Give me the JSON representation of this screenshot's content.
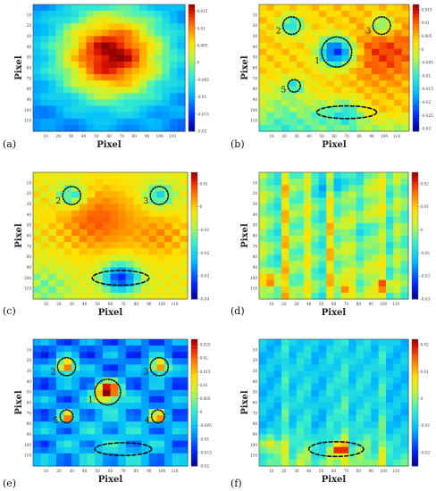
{
  "figure": {
    "panels": [
      {
        "label": "(a)",
        "type": "heatmap",
        "x_axis_title": "Pixel",
        "y_axis_title": "Pixel",
        "x_ticks": [
          "10",
          "20",
          "30",
          "40",
          "50",
          "60",
          "70",
          "80",
          "90",
          "100",
          "110"
        ],
        "y_ticks": [
          "10",
          "20",
          "30",
          "40",
          "50",
          "60",
          "70",
          "80",
          "90",
          "100",
          "110"
        ],
        "colorbar_ticks": [
          "0.015",
          "0.01",
          "0.005",
          "0",
          "-0.005",
          "-0.01",
          "-0.015",
          "-0.02"
        ],
        "colorbar_range": [
          -0.02,
          0.017
        ],
        "pattern": "central-peak",
        "markers": []
      },
      {
        "label": "(b)",
        "type": "heatmap",
        "x_axis_title": "Pixel",
        "y_axis_title": "Pixel",
        "x_ticks": [
          "10",
          "20",
          "30",
          "40",
          "50",
          "60",
          "70",
          "80",
          "90",
          "100",
          "110"
        ],
        "y_ticks": [
          "10",
          "20",
          "30",
          "40",
          "50",
          "60",
          "70",
          "80",
          "90",
          "100",
          "110"
        ],
        "colorbar_ticks": [
          "0.015",
          "0.01",
          "0.005",
          "0",
          "-0.005",
          "-0.01",
          "-0.015",
          "-0.02",
          "-0.025",
          "-0.03"
        ],
        "colorbar_range": [
          -0.031,
          0.017
        ],
        "pattern": "warm-with-dips",
        "markers": [
          {
            "label": "1",
            "x": 62,
            "y": 45,
            "r": 12,
            "style": "dotted",
            "kind": "circle"
          },
          {
            "label": "2",
            "x": 26,
            "y": 20,
            "r": 7,
            "style": "dotted",
            "kind": "circle"
          },
          {
            "label": "3",
            "x": 98,
            "y": 20,
            "r": 7,
            "style": "dotted",
            "kind": "circle"
          },
          {
            "label": "5",
            "x": 28,
            "y": 77,
            "r": 5,
            "style": "dotted",
            "kind": "circle"
          },
          {
            "label": "",
            "x": 70,
            "y": 102,
            "r": 24,
            "ry": 6,
            "style": "dashed",
            "kind": "ellipse"
          }
        ]
      },
      {
        "label": "(c)",
        "type": "heatmap",
        "x_axis_title": "Pixel",
        "y_axis_title": "Pixel",
        "x_ticks": [
          "10",
          "20",
          "30",
          "40",
          "50",
          "60",
          "70",
          "80",
          "90",
          "100",
          "110"
        ],
        "y_ticks": [
          "10",
          "20",
          "30",
          "40",
          "50",
          "60",
          "70",
          "80",
          "90",
          "100",
          "110"
        ],
        "colorbar_ticks": [
          "0.01",
          "0",
          "-0.01",
          "-0.02",
          "-0.03",
          "-0.04"
        ],
        "colorbar_range": [
          -0.04,
          0.015
        ],
        "pattern": "warm-left-blob",
        "markers": [
          {
            "label": "2",
            "x": 30,
            "y": 22,
            "r": 7,
            "style": "dotted",
            "kind": "circle"
          },
          {
            "label": "3",
            "x": 98,
            "y": 22,
            "r": 7,
            "style": "dotted",
            "kind": "circle"
          },
          {
            "label": "",
            "x": 68,
            "y": 100,
            "r": 22,
            "ry": 7,
            "style": "dashed",
            "kind": "ellipse"
          }
        ]
      },
      {
        "label": "(d)",
        "type": "heatmap",
        "x_axis_title": "Pixel",
        "y_axis_title": "Pixel",
        "x_ticks": [
          "10",
          "20",
          "30",
          "40",
          "50",
          "60",
          "70",
          "80",
          "90",
          "100",
          "110"
        ],
        "y_ticks": [
          "10",
          "20",
          "30",
          "40",
          "50",
          "60",
          "70",
          "80",
          "90",
          "100",
          "110"
        ],
        "colorbar_ticks": [
          "0.02",
          "0.01",
          "0",
          "-0.01",
          "-0.02",
          "-0.03"
        ],
        "colorbar_range": [
          -0.03,
          0.025
        ],
        "pattern": "vertical-streaks",
        "markers": []
      },
      {
        "label": "(e)",
        "type": "heatmap",
        "x_axis_title": "Pixel",
        "y_axis_title": "Pixel",
        "x_ticks": [
          "10",
          "20",
          "30",
          "40",
          "50",
          "60",
          "70",
          "80",
          "90",
          "100",
          "110"
        ],
        "y_ticks": [
          "10",
          "20",
          "30",
          "40",
          "50",
          "60",
          "70",
          "80",
          "90",
          "100",
          "110"
        ],
        "colorbar_ticks": [
          "0.025",
          "0.02",
          "0.015",
          "0.01",
          "0.005",
          "0",
          "-0.005",
          "-0.01",
          "-0.015",
          "-0.02"
        ],
        "colorbar_range": [
          -0.02,
          0.027
        ],
        "pattern": "cool-with-hotspots",
        "markers": [
          {
            "label": "1",
            "x": 58,
            "y": 50,
            "r": 10,
            "style": "dotted",
            "kind": "circle"
          },
          {
            "label": "2",
            "x": 26,
            "y": 26,
            "r": 7,
            "style": "dotted",
            "kind": "circle"
          },
          {
            "label": "3",
            "x": 98,
            "y": 26,
            "r": 7,
            "style": "dotted",
            "kind": "circle"
          },
          {
            "label": "4",
            "x": 97,
            "y": 73,
            "r": 5,
            "style": "dotted",
            "kind": "circle"
          },
          {
            "label": "5",
            "x": 26,
            "y": 73,
            "r": 5,
            "style": "dotted",
            "kind": "circle"
          },
          {
            "label": "",
            "x": 70,
            "y": 104,
            "r": 22,
            "ry": 6,
            "style": "dashed",
            "kind": "ellipse"
          }
        ]
      },
      {
        "label": "(f)",
        "type": "heatmap",
        "x_axis_title": "Pixel",
        "y_axis_title": "Pixel",
        "x_ticks": [
          "10",
          "20",
          "30",
          "40",
          "50",
          "60",
          "70",
          "80",
          "90",
          "100",
          "110"
        ],
        "y_ticks": [
          "10",
          "20",
          "30",
          "40",
          "50",
          "60",
          "70",
          "80",
          "90",
          "100",
          "110"
        ],
        "colorbar_ticks": [
          "0.02",
          "0.01",
          "0",
          "-0.01",
          "-0.02"
        ],
        "colorbar_range": [
          -0.025,
          0.022
        ],
        "pattern": "cool-streaks",
        "markers": [
          {
            "label": "",
            "x": 62,
            "y": 104,
            "r": 22,
            "ry": 7,
            "style": "dashed",
            "kind": "ellipse"
          }
        ]
      }
    ]
  },
  "chart_data": [
    {
      "type": "heatmap",
      "title": "",
      "xlabel": "Pixel",
      "ylabel": "Pixel",
      "xlim": [
        0,
        120
      ],
      "ylim": [
        0,
        120
      ],
      "colorbar_range": [
        -0.02,
        0.017
      ]
    },
    {
      "type": "heatmap",
      "title": "",
      "xlabel": "Pixel",
      "ylabel": "Pixel",
      "xlim": [
        0,
        120
      ],
      "ylim": [
        0,
        120
      ],
      "colorbar_range": [
        -0.031,
        0.017
      ]
    },
    {
      "type": "heatmap",
      "title": "",
      "xlabel": "Pixel",
      "ylabel": "Pixel",
      "xlim": [
        0,
        120
      ],
      "ylim": [
        0,
        120
      ],
      "colorbar_range": [
        -0.04,
        0.015
      ]
    },
    {
      "type": "heatmap",
      "title": "",
      "xlabel": "Pixel",
      "ylabel": "Pixel",
      "xlim": [
        0,
        120
      ],
      "ylim": [
        0,
        120
      ],
      "colorbar_range": [
        -0.03,
        0.025
      ]
    },
    {
      "type": "heatmap",
      "title": "",
      "xlabel": "Pixel",
      "ylabel": "Pixel",
      "xlim": [
        0,
        120
      ],
      "ylim": [
        0,
        120
      ],
      "colorbar_range": [
        -0.02,
        0.027
      ]
    },
    {
      "type": "heatmap",
      "title": "",
      "xlabel": "Pixel",
      "ylabel": "Pixel",
      "xlim": [
        0,
        120
      ],
      "ylim": [
        0,
        120
      ],
      "colorbar_range": [
        -0.025,
        0.022
      ]
    }
  ]
}
